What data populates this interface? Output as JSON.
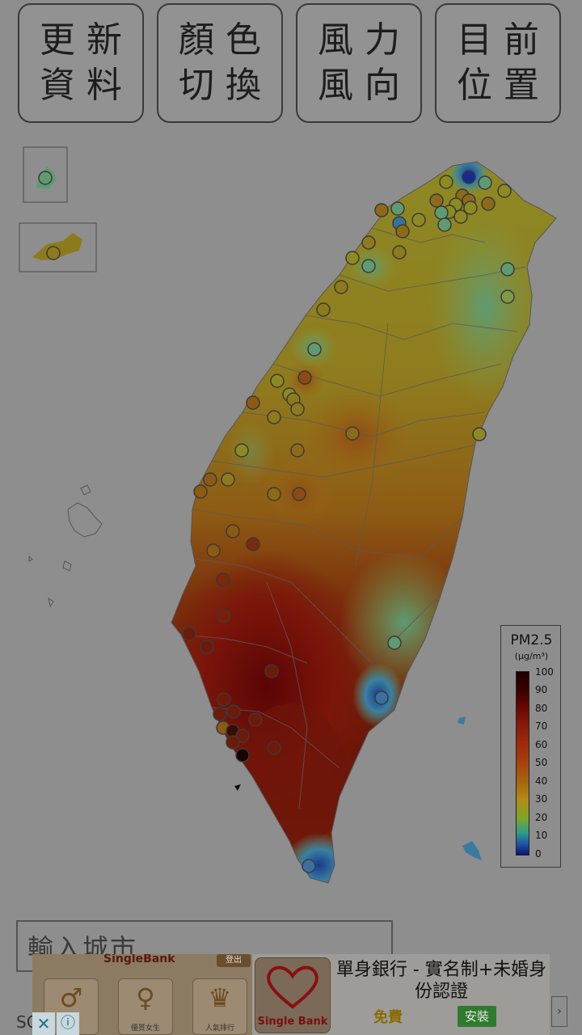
{
  "toolbar": {
    "refresh": {
      "line1": "更新",
      "line2": "資料"
    },
    "color_toggle": {
      "line1": "顏色",
      "line2": "切換"
    },
    "wind": {
      "line1": "風力",
      "line2": "風向"
    },
    "location": {
      "line1": "目前",
      "line2": "位置"
    }
  },
  "legend": {
    "title": "PM2.5",
    "unit": "(μg/m³)",
    "ticks": [
      "100",
      "90",
      "80",
      "70",
      "60",
      "50",
      "40",
      "30",
      "20",
      "10",
      "0"
    ]
  },
  "search": {
    "placeholder": "輸入城市"
  },
  "footer_label": "SO",
  "ad": {
    "brand": "SingleBank",
    "logout": "登出",
    "tile_labels": [
      "",
      "優質女生",
      "人氣排行"
    ],
    "logo_text": "Single Bank",
    "title": "單身銀行 - 實名制+未婚身份認證",
    "free": "免費",
    "install": "安裝"
  }
}
